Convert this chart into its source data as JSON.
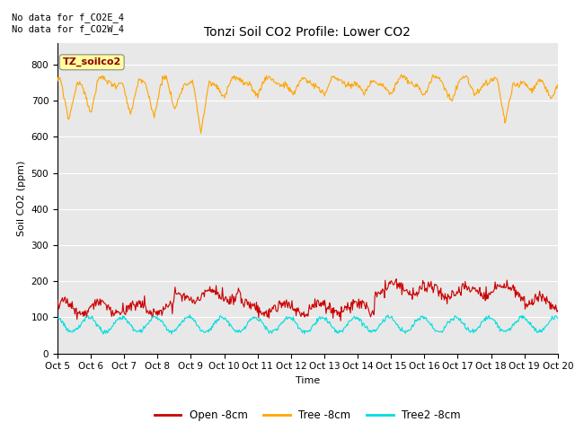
{
  "title": "Tonzi Soil CO2 Profile: Lower CO2",
  "ylabel": "Soil CO2 (ppm)",
  "xlabel": "Time",
  "annotation_text": "No data for f_CO2E_4\nNo data for f_CO2W_4",
  "legend_box_label": "TZ_soilco2",
  "ylim": [
    0,
    860
  ],
  "yticks": [
    0,
    100,
    200,
    300,
    400,
    500,
    600,
    700,
    800
  ],
  "xtick_labels": [
    "Oct 5",
    "Oct 6",
    "Oct 7",
    "Oct 8",
    "Oct 9",
    "Oct 10",
    "Oct 11",
    "Oct 12",
    "Oct 13",
    "Oct 14",
    "Oct 15",
    "Oct 16",
    "Oct 17",
    "Oct 18",
    "Oct 19",
    "Oct 20"
  ],
  "bg_color": "#E8E8E8",
  "plot_bg_color": "#E8E8E8",
  "line_colors": {
    "open": "#CC0000",
    "tree": "#FFA500",
    "tree2": "#00DDDD"
  },
  "legend_labels": [
    "Open -8cm",
    "Tree -8cm",
    "Tree2 -8cm"
  ],
  "num_points": 720,
  "figsize": [
    6.4,
    4.8
  ],
  "dpi": 100
}
